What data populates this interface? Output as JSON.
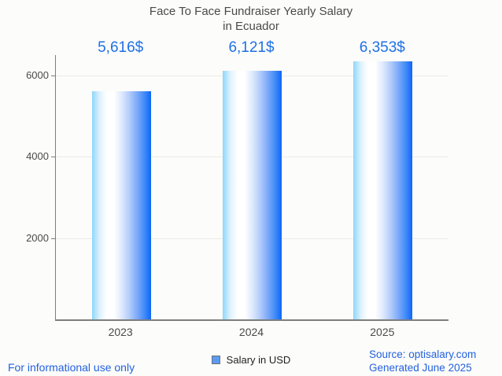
{
  "title": {
    "line1": "Face To Face Fundraiser Yearly Salary",
    "line2": "in Ecuador"
  },
  "chart_data": {
    "type": "bar",
    "categories": [
      "2023",
      "2024",
      "2025"
    ],
    "values": [
      5616,
      6121,
      6353
    ],
    "value_labels": [
      "5,616$",
      "6,121$",
      "6,353$"
    ],
    "series": [
      {
        "name": "Salary in USD",
        "values": [
          5616,
          6121,
          6353
        ]
      }
    ],
    "title": "Face To Face Fundraiser Yearly Salary in Ecuador",
    "xlabel": "",
    "ylabel": "",
    "y_ticks": [
      2000,
      4000,
      6000
    ],
    "ylim": [
      0,
      6500
    ],
    "grid": true,
    "legend_position": "bottom",
    "bar_gradient": [
      "#8ed7fa",
      "#ffffff",
      "#0d66f7"
    ]
  },
  "legend": {
    "label": "Salary in USD"
  },
  "footer": {
    "disclaimer": "For informational use only",
    "source": "Source: optisalary.com",
    "generated": "Generated June 2025"
  },
  "colors": {
    "background": "#fcfcfa",
    "title": "#4a4a4a",
    "value_label": "#1e70e8",
    "axis": "#7e7e7e",
    "axis_label": "#4a4a4a",
    "gridline": "#ebebe9",
    "legend_swatch": "#5b9bf3",
    "footer_text": "#2361e0"
  }
}
